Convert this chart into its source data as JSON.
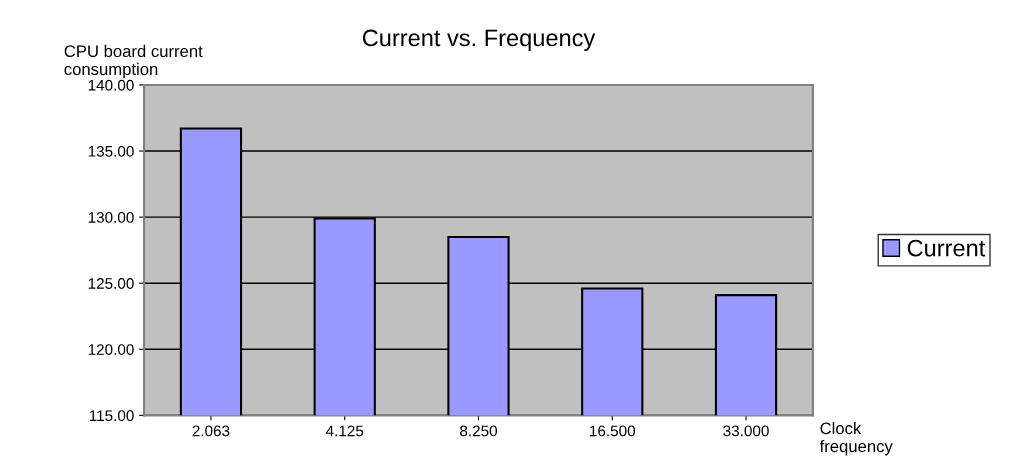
{
  "chart_data": {
    "type": "bar",
    "title": "Current vs. Frequency",
    "xlabel": "Clock\nfrequency",
    "ylabel": "CPU board current\nconsumption",
    "categories": [
      "2.063",
      "4.125",
      "8.250",
      "16.500",
      "33.000"
    ],
    "series": [
      {
        "name": "Current",
        "color": "#9999ff",
        "values": [
          136.7,
          129.9,
          128.5,
          124.6,
          124.1
        ]
      }
    ],
    "ylim": [
      115,
      140
    ],
    "yticks": [
      {
        "value": 115,
        "label": "115.00"
      },
      {
        "value": 120,
        "label": "120.00"
      },
      {
        "value": 125,
        "label": "125.00"
      },
      {
        "value": 130,
        "label": "130.00"
      },
      {
        "value": 135,
        "label": "135.00"
      },
      {
        "value": 140,
        "label": "140.00"
      }
    ],
    "grid": "y",
    "legend": "right"
  }
}
